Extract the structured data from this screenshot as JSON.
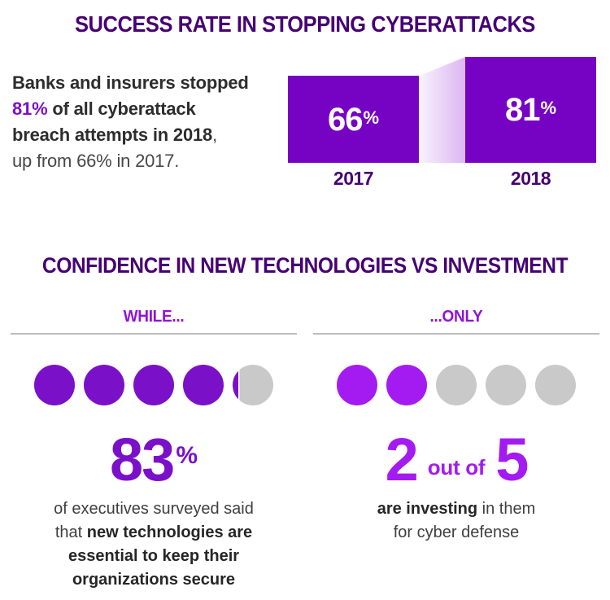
{
  "colors": {
    "dark_purple": "#460073",
    "bar_purple": "#7602C4",
    "accent_purple": "#7B10C9",
    "bright_purple": "#A41BF2",
    "label_purple": "#9013D6",
    "dot_gray": "#C9C9C9",
    "divider_gray": "#BDBDBD",
    "connector_gradient_left": "#F8F3FC",
    "connector_gradient_right": "#DDB9F2",
    "bar_value_text": "#FFFFFF"
  },
  "section1": {
    "title": "SUCCESS RATE IN STOPPING CYBERATTACKS",
    "intro": {
      "line1": "Banks and insurers stopped",
      "line2_highlight": "81%",
      "line2_rest": " of all cyberattack",
      "line3_bold": "breach attempts in 2018",
      "line3_comma": ",",
      "line4": "up from 66% in 2017."
    }
  },
  "section2": {
    "title": "CONFIDENCE IN NEW TECHNOLOGIES VS INVESTMENT",
    "left_caption": {
      "l1": "of executives surveyed said",
      "l2_regular": "that ",
      "l2_bold": "new technologies are",
      "l3": "essential to keep their",
      "l4": "organizations secure"
    },
    "right_caption": {
      "l1_bold": "are investing",
      "l1_regular": " in them",
      "l2": "for cyber defense"
    }
  },
  "chart_data": [
    {
      "type": "bar",
      "title": "SUCCESS RATE IN STOPPING CYBERATTACKS",
      "categories": [
        "2017",
        "2018"
      ],
      "values": [
        66,
        81
      ],
      "unit": "%",
      "bar_color": "#7602C4",
      "annotation": "Banks and insurers stopped 81% of all cyberattack breach attempts in 2018, up from 66% in 2017."
    },
    {
      "type": "pictograph",
      "title": "CONFIDENCE IN NEW TECHNOLOGIES VS INVESTMENT",
      "series": [
        {
          "name": "WHILE...",
          "value": 83,
          "unit": "%",
          "dots": {
            "total": 5,
            "filled": 4.15,
            "fill_color": "#7B10C9",
            "empty_color": "#C9C9C9"
          },
          "caption": "of executives surveyed said that new technologies are essential to keep their organizations secure"
        },
        {
          "name": "...ONLY",
          "numerator": 2,
          "connector_text": "out of",
          "denominator": 5,
          "dots": {
            "total": 5,
            "filled": 2,
            "fill_color": "#A41BF2",
            "empty_color": "#C9C9C9"
          },
          "caption": "are investing in them for cyber defense"
        }
      ]
    }
  ]
}
